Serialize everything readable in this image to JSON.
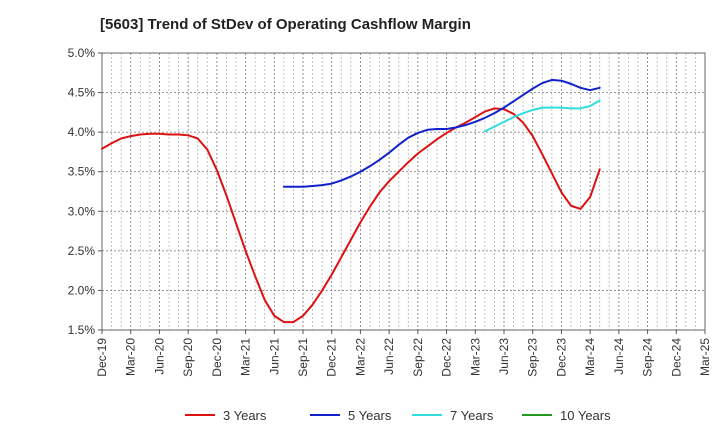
{
  "chart_data": {
    "type": "line",
    "title": "[5603]  Trend of StDev of Operating Cashflow Margin",
    "xlabel": "",
    "ylabel": "",
    "ylim": [
      1.5,
      5.0
    ],
    "y_ticks": [
      "1.5%",
      "2.0%",
      "2.5%",
      "3.0%",
      "3.5%",
      "4.0%",
      "4.5%",
      "5.0%"
    ],
    "y_tick_values": [
      1.5,
      2.0,
      2.5,
      3.0,
      3.5,
      4.0,
      4.5,
      5.0
    ],
    "x_ticks": [
      "Dec-19",
      "Mar-20",
      "Jun-20",
      "Sep-20",
      "Dec-20",
      "Mar-21",
      "Jun-21",
      "Sep-21",
      "Dec-21",
      "Mar-22",
      "Jun-22",
      "Sep-22",
      "Dec-22",
      "Mar-23",
      "Jun-23",
      "Sep-23",
      "Dec-23",
      "Mar-24",
      "Jun-24",
      "Sep-24",
      "Dec-24",
      "Mar-25"
    ],
    "grid": true,
    "legend_position": "bottom",
    "series": [
      {
        "name": "3 Years",
        "color": "#dd1111",
        "values": [
          3.79,
          3.86,
          3.92,
          3.95,
          3.97,
          3.98,
          3.98,
          3.97,
          3.97,
          3.96,
          3.92,
          3.78,
          3.52,
          3.2,
          2.85,
          2.5,
          2.18,
          1.88,
          1.68,
          1.6,
          1.6,
          1.68,
          1.82,
          2.0,
          2.2,
          2.42,
          2.64,
          2.86,
          3.06,
          3.24,
          3.38,
          3.5,
          3.62,
          3.73,
          3.82,
          3.91,
          3.99,
          4.06,
          4.12,
          4.19,
          4.26,
          4.3,
          4.29,
          4.23,
          4.12,
          3.95,
          3.72,
          3.48,
          3.24,
          3.07,
          3.03,
          3.18,
          3.53
        ]
      },
      {
        "name": "5 Years",
        "color": "#1122cc",
        "values": [
          null,
          null,
          null,
          null,
          null,
          null,
          null,
          null,
          null,
          null,
          null,
          null,
          null,
          null,
          null,
          null,
          null,
          null,
          null,
          3.31,
          3.31,
          3.31,
          3.32,
          3.33,
          3.35,
          3.39,
          3.44,
          3.5,
          3.57,
          3.65,
          3.74,
          3.84,
          3.93,
          3.99,
          4.03,
          4.04,
          4.04,
          4.06,
          4.09,
          4.13,
          4.18,
          4.24,
          4.31,
          4.39,
          4.47,
          4.55,
          4.62,
          4.66,
          4.65,
          4.61,
          4.56,
          4.53,
          4.56
        ]
      },
      {
        "name": "7 Years",
        "color": "#33dddd",
        "values": [
          null,
          null,
          null,
          null,
          null,
          null,
          null,
          null,
          null,
          null,
          null,
          null,
          null,
          null,
          null,
          null,
          null,
          null,
          null,
          null,
          null,
          null,
          null,
          null,
          null,
          null,
          null,
          null,
          null,
          null,
          null,
          null,
          null,
          null,
          null,
          null,
          null,
          null,
          null,
          null,
          4.01,
          4.07,
          4.13,
          4.19,
          4.24,
          4.28,
          4.31,
          4.31,
          4.31,
          4.3,
          4.3,
          4.33,
          4.4
        ]
      },
      {
        "name": "10 Years",
        "color": "#229922",
        "values": []
      }
    ]
  }
}
